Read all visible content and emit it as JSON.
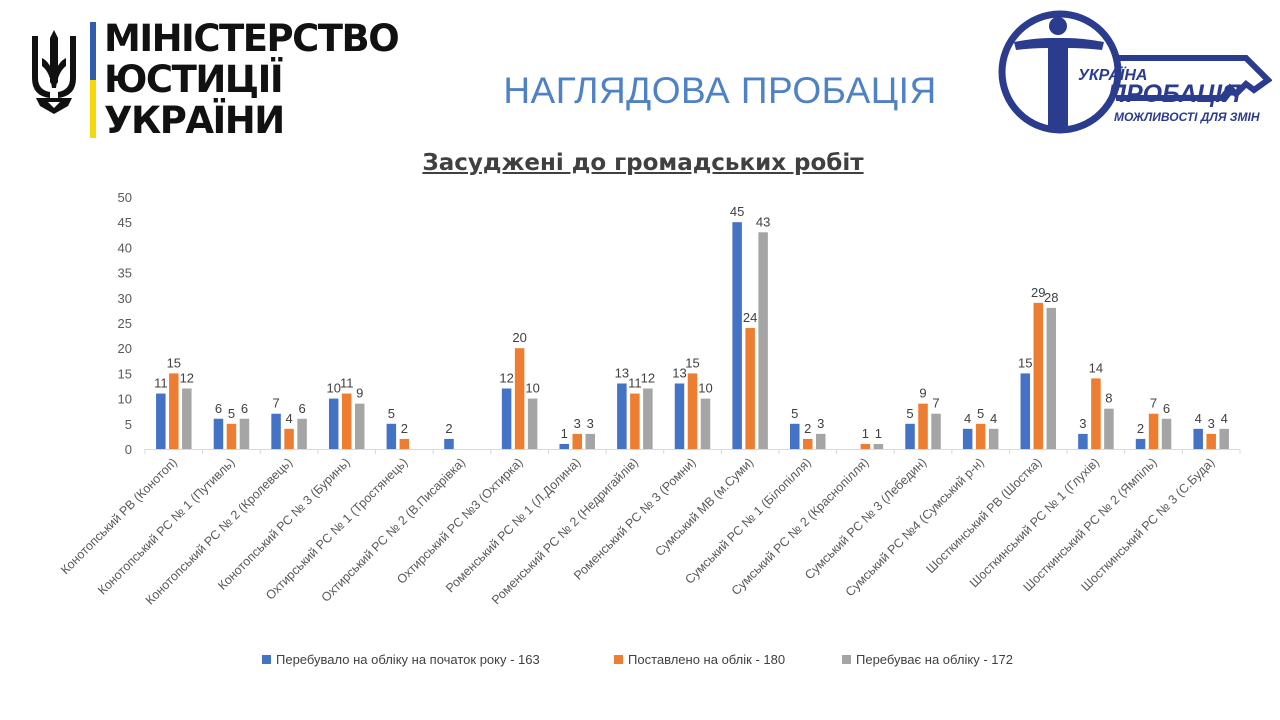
{
  "header": {
    "ministry_line1": "МІНІСТЕРСТВО",
    "ministry_line2": "ЮСТИЦІЇ УКРАЇНИ",
    "slide_title": "НАГЛЯДОВА ПРОБАЦІЯ",
    "logo_text_country": "УКРАЇНА",
    "logo_text_brand": "ПРОБАЦІЯ",
    "logo_text_slogan": "МОЖЛИВОСТІ ДЛЯ ЗМІН"
  },
  "colors": {
    "blue": "#4472c4",
    "orange": "#ed7d31",
    "gray": "#a5a5a5",
    "logo_navy": "#2b3c8f",
    "title_blue": "#4f81c5"
  },
  "chart_data": {
    "type": "bar",
    "title": "Засуджені до громадських робіт",
    "ylim": [
      0,
      50
    ],
    "yticks": [
      0,
      5,
      10,
      15,
      20,
      25,
      30,
      35,
      40,
      45,
      50
    ],
    "grid": false,
    "legend_position": "bottom",
    "categories": [
      "Конотопський РВ (Конотоп)",
      "Конотопський РС № 1 (Путивль)",
      "Конотопський РС № 2 (Кролевець)",
      "Конотопський РС № 3 (Буринь)",
      "Охтирський РС № 1 (Тростянець)",
      "Охтирський РС № 2 (В.Писарівка)",
      "Охтирський РС №3 (Охтирка)",
      "Роменський РС № 1 (Л.Долина)",
      "Роменський РС № 2 (Недригайлів)",
      "Роменський РС № 3 (Ромни)",
      "Сумський МВ (м.Суми)",
      "Сумський РС № 1 (Білопілля)",
      "Сумський РС № 2 (Краснопілля)",
      "Сумський РС № 3 (Лебедин)",
      "Сумський РС №4 (Сумський р-н)",
      "Шосткинський РВ (Шостка)",
      "Шосткинський РС № 1 (Глухів)",
      "Шосткинський РС № 2 (Ямпіль)",
      "Шосткинський РС № 3 (С.Буда)"
    ],
    "series": [
      {
        "name": "Перебувало на обліку на початок року - 163",
        "color": "#4472c4",
        "values": [
          11,
          6,
          7,
          10,
          5,
          2,
          12,
          1,
          13,
          13,
          45,
          5,
          null,
          5,
          4,
          15,
          3,
          2,
          4
        ]
      },
      {
        "name": "Поставлено на облік - 180",
        "color": "#ed7d31",
        "values": [
          15,
          5,
          4,
          11,
          2,
          null,
          20,
          3,
          11,
          15,
          24,
          2,
          1,
          9,
          5,
          29,
          14,
          7,
          3
        ]
      },
      {
        "name": "Перебуває на обліку - 172",
        "color": "#a5a5a5",
        "values": [
          12,
          6,
          6,
          9,
          null,
          null,
          10,
          3,
          12,
          10,
          43,
          3,
          1,
          7,
          4,
          28,
          8,
          6,
          4
        ]
      }
    ]
  }
}
